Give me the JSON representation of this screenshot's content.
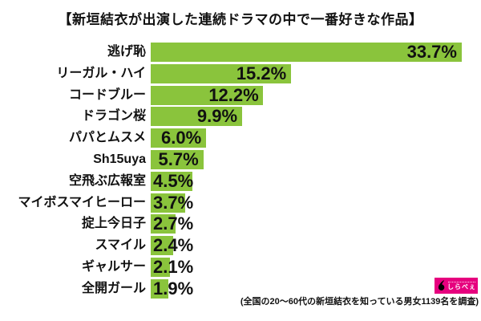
{
  "title": "【新垣結衣が出演した連続ドラマの中で一番好きな作品】",
  "chart_data": {
    "type": "bar",
    "orientation": "horizontal",
    "title": "新垣結衣が出演した連続ドラマの中で一番好きな作品",
    "categories": [
      "逃げ恥",
      "リーガル・ハイ",
      "コードブルー",
      "ドラゴン桜",
      "パパとムスメ",
      "Sh15uya",
      "空飛ぶ広報室",
      "マイボスマイヒーロー",
      "掟上今日子",
      "スマイル",
      "ギャルサー",
      "全開ガール"
    ],
    "values": [
      33.7,
      15.2,
      12.2,
      9.9,
      6.0,
      5.7,
      4.5,
      3.7,
      2.7,
      2.4,
      2.1,
      1.9
    ],
    "value_labels": [
      "33.7%",
      "15.2%",
      "12.2%",
      "9.9%",
      "6.0%",
      "5.7%",
      "4.5%",
      "3.7%",
      "2.7%",
      "2.4%",
      "2.1%",
      "1.9%"
    ],
    "unit": "%",
    "xlim": [
      0,
      34
    ],
    "grid": false,
    "legend": false,
    "value_label_position": "inside-end",
    "bar_color": "#8AC43C"
  },
  "footer": {
    "note": "(全国の20〜60代の新垣結衣を知っている男女1139名を調査)",
    "logo_text": "しらべぇ"
  },
  "colors": {
    "background": "#FFFFFF",
    "bar": "#8AC43C",
    "text": "#111111",
    "logo_pink": "#E6007E"
  }
}
